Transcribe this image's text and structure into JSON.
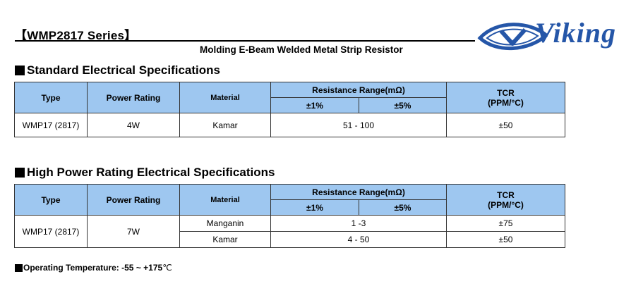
{
  "header": {
    "series_title": "【WMP2817 Series】",
    "subtitle": "Molding E-Beam Welded Metal Strip Resistor",
    "logo_text": "Viking",
    "logo_color": "#2556a8"
  },
  "standard": {
    "heading": "Standard Electrical Specifications",
    "col_type": "Type",
    "col_power": "Power Rating",
    "col_material": "Material",
    "col_resistance": "Resistance Range(mΩ)",
    "col_tol1": "±1%",
    "col_tol5": "±5%",
    "col_tcr_1": "TCR",
    "col_tcr_2": "(PPM/°C)",
    "rows": [
      {
        "type": "WMP17 (2817)",
        "power": "4W",
        "material": "Kamar",
        "range": "51 - 100",
        "tcr": "±50"
      }
    ]
  },
  "high_power": {
    "heading": "High Power Rating Electrical Specifications",
    "col_type": "Type",
    "col_power": "Power Rating",
    "col_material": "Material",
    "col_resistance": "Resistance Range(mΩ)",
    "col_tol1": "±1%",
    "col_tol5": "±5%",
    "col_tcr_1": "TCR",
    "col_tcr_2": "(PPM/°C)",
    "type": "WMP17 (2817)",
    "power": "7W",
    "rows": [
      {
        "material": "Manganin",
        "range": "1 -3",
        "tcr": "±75"
      },
      {
        "material": "Kamar",
        "range": "4 - 50",
        "tcr": "±50"
      }
    ]
  },
  "operating_temperature": {
    "label": "Operating Temperature: -55 ~ +175",
    "unit": "℃"
  },
  "colors": {
    "header_fill": "#9ec7f0",
    "logo_blue": "#2556a8"
  },
  "icons": {
    "logo": "viking-eye-logo-icon",
    "bullet": "black-square-bullet-icon"
  }
}
